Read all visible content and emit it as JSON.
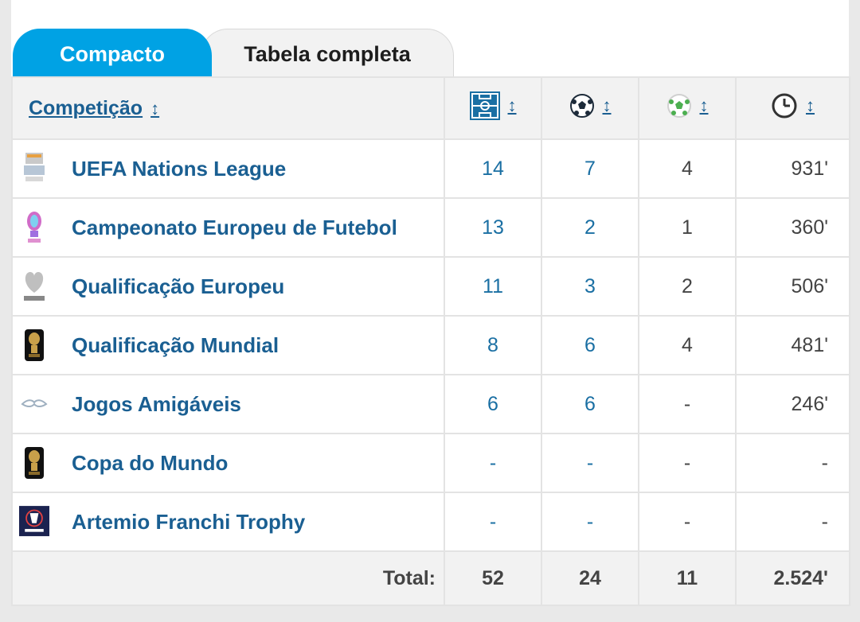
{
  "tabs": [
    {
      "label": "Compacto",
      "active": true
    },
    {
      "label": "Tabela completa",
      "active": false
    }
  ],
  "header": {
    "competition": "Competição",
    "sort_glyph": "↕",
    "columns": [
      {
        "icon": "pitch-icon"
      },
      {
        "icon": "goals-ball-icon"
      },
      {
        "icon": "assists-ball-icon"
      },
      {
        "icon": "clock-icon"
      }
    ]
  },
  "rows": [
    {
      "name": "UEFA Nations League",
      "apps": "14",
      "goals": "7",
      "assists": "4",
      "minutes": "931'"
    },
    {
      "name": "Campeonato Europeu de Futebol",
      "apps": "13",
      "goals": "2",
      "assists": "1",
      "minutes": "360'"
    },
    {
      "name": "Qualificação Europeu",
      "apps": "11",
      "goals": "3",
      "assists": "2",
      "minutes": "506'"
    },
    {
      "name": "Qualificação Mundial",
      "apps": "8",
      "goals": "6",
      "assists": "4",
      "minutes": "481'"
    },
    {
      "name": "Jogos Amigáveis",
      "apps": "6",
      "goals": "6",
      "assists": "-",
      "minutes": "246'"
    },
    {
      "name": "Copa do Mundo",
      "apps": "-",
      "goals": "-",
      "assists": "-",
      "minutes": "-"
    },
    {
      "name": "Artemio Franchi Trophy",
      "apps": "-",
      "goals": "-",
      "assists": "-",
      "minutes": "-"
    }
  ],
  "totals": {
    "label": "Total:",
    "apps": "52",
    "goals": "24",
    "assists": "11",
    "minutes": "2.524'"
  },
  "colors": {
    "accent": "#00a2e4",
    "link": "#1a5f92",
    "number": "#1a6fa3",
    "header_bg": "#f2f2f2",
    "assist_green": "#4caf50"
  }
}
